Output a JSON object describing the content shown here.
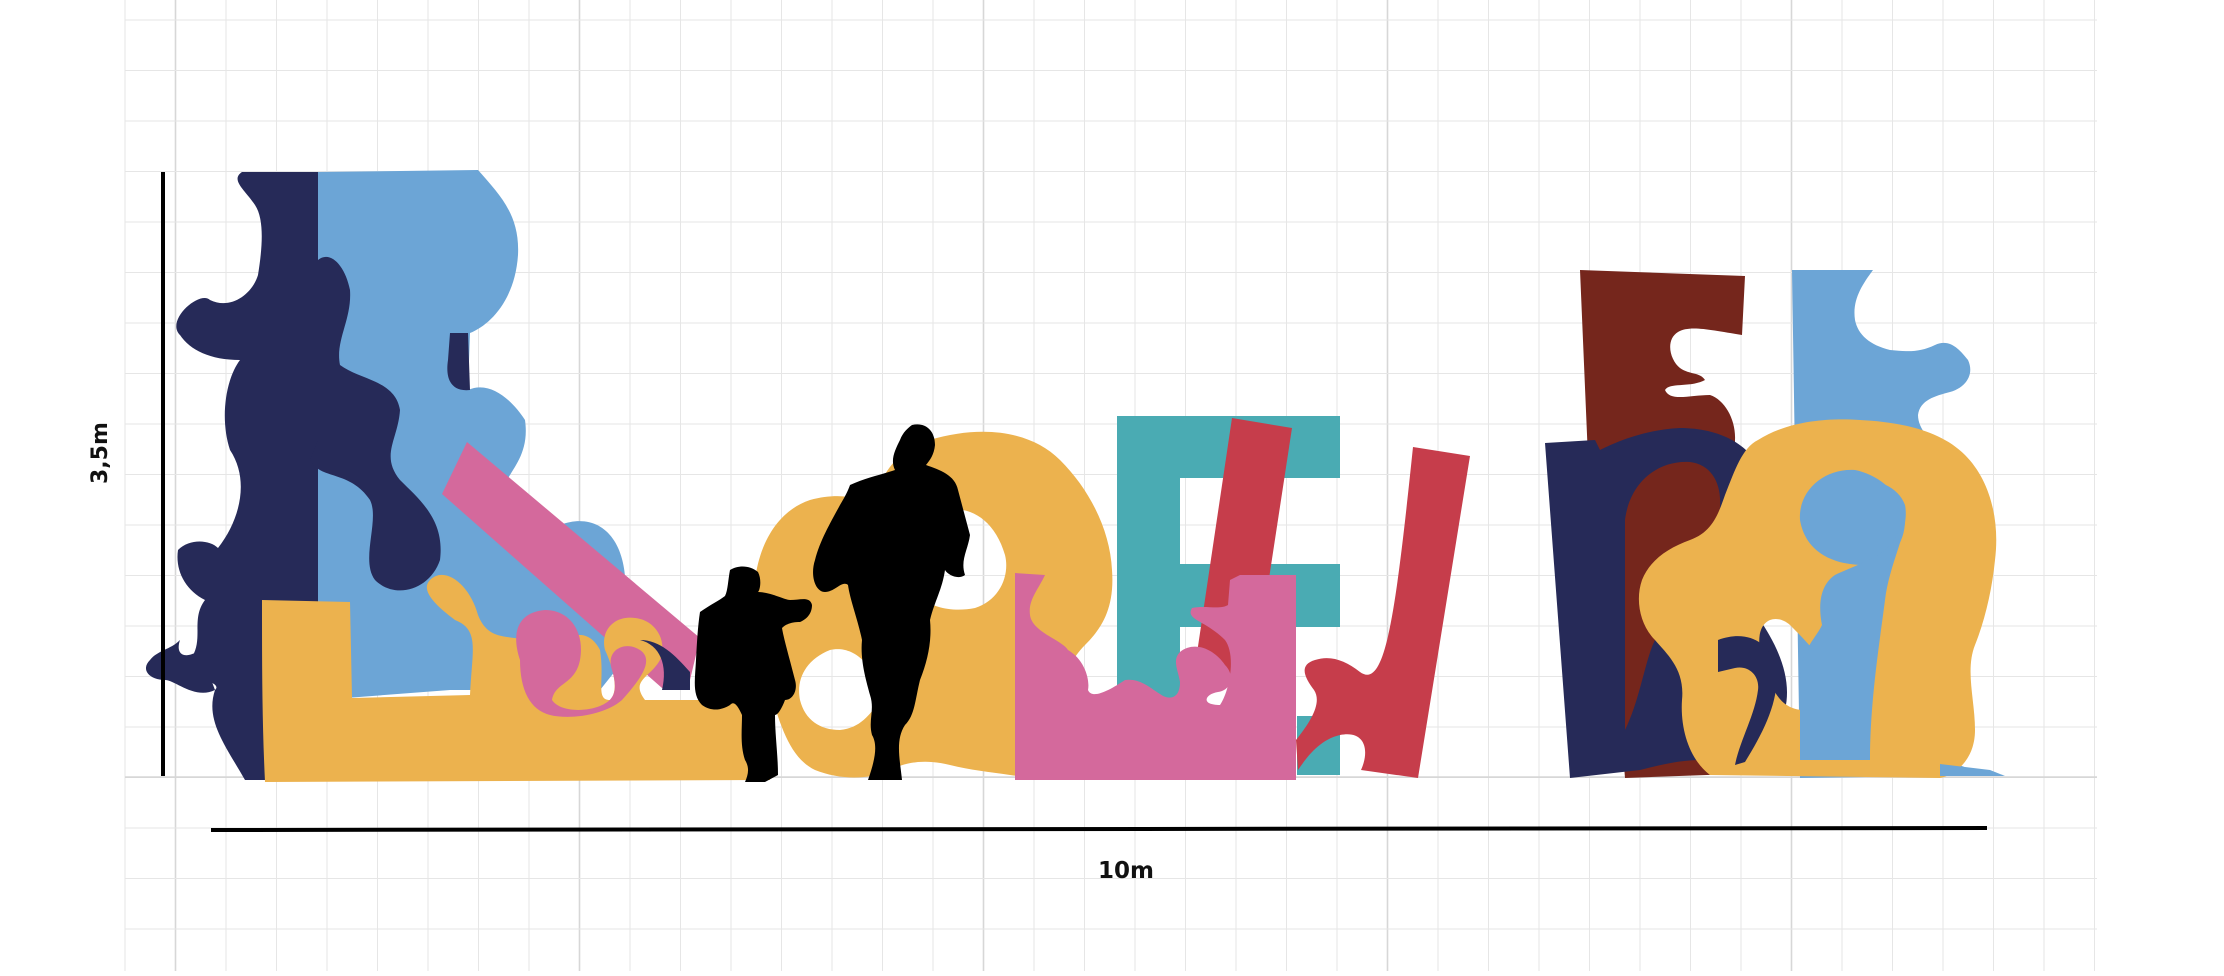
{
  "dimensions": {
    "width_label": "10m",
    "height_label": "3,5m"
  },
  "palette": {
    "navy": "#262a58",
    "sky_blue": "#6ca5d6",
    "yellow": "#ecb24e",
    "pink": "#d4699c",
    "teal": "#4aabb3",
    "red": "#c63d4b",
    "maroon": "#75261c",
    "silhouette": "#000000",
    "grid": "#e6e6e6",
    "grid_major": "#d7d7d7"
  }
}
